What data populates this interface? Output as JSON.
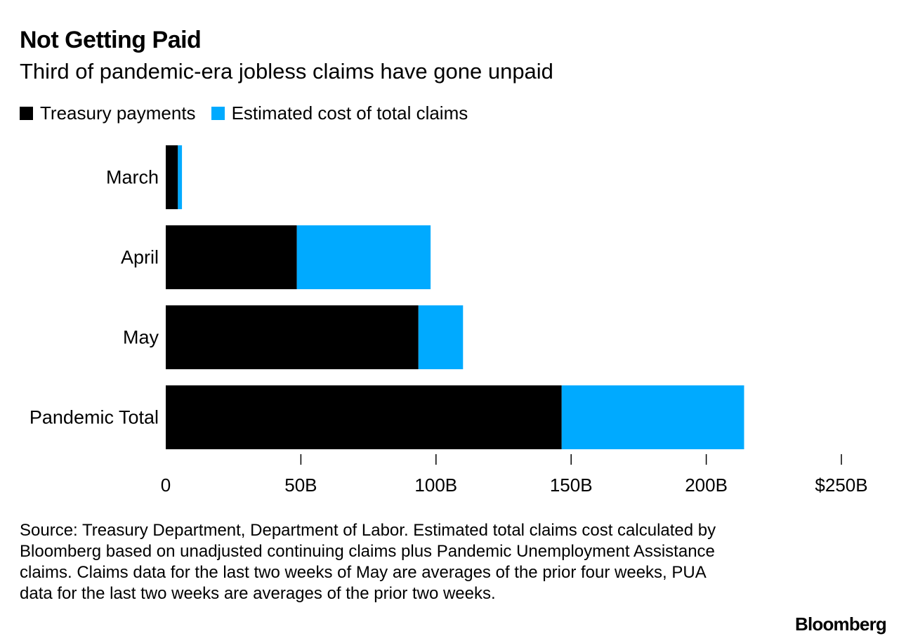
{
  "header": {
    "title": "Not Getting Paid",
    "subtitle": "Third of pandemic-era jobless claims have gone unpaid"
  },
  "legend": {
    "items": [
      {
        "label": "Treasury payments",
        "color": "#000000"
      },
      {
        "label": "Estimated cost of total claims",
        "color": "#00aaff"
      }
    ]
  },
  "chart_data": {
    "type": "bar",
    "orientation": "horizontal",
    "stacked": true,
    "title": "Not Getting Paid",
    "subtitle": "Third of pandemic-era jobless claims have gone unpaid",
    "categories": [
      "March",
      "April",
      "May",
      "Pandemic Total"
    ],
    "series": [
      {
        "name": "Treasury payments",
        "color": "#000000",
        "values": [
          4.5,
          48.5,
          93.5,
          146.5
        ]
      },
      {
        "name": "Estimated cost of total claims",
        "color": "#00aaff",
        "values": [
          1.5,
          49.5,
          16.5,
          67.5
        ]
      }
    ],
    "xlim": [
      0,
      250
    ],
    "xticks": [
      {
        "value": 0,
        "label": "0"
      },
      {
        "value": 50,
        "label": "50B"
      },
      {
        "value": 100,
        "label": "100B"
      },
      {
        "value": 150,
        "label": "150B"
      },
      {
        "value": 200,
        "label": "200B"
      },
      {
        "value": 250,
        "label": "$250B"
      }
    ],
    "xlabel": "",
    "ylabel": "",
    "grid": false,
    "legend_position": "top-left"
  },
  "footer": {
    "source": "Source: Treasury Department, Department of Labor. Estimated total claims cost calculated by Bloomberg based on unadjusted continuing claims plus Pandemic Unemployment Assistance claims. Claims data for the last two weeks of May are averages of the prior four weeks, PUA data for the last two weeks are averages of the prior two weeks.",
    "brand": "Bloomberg"
  }
}
